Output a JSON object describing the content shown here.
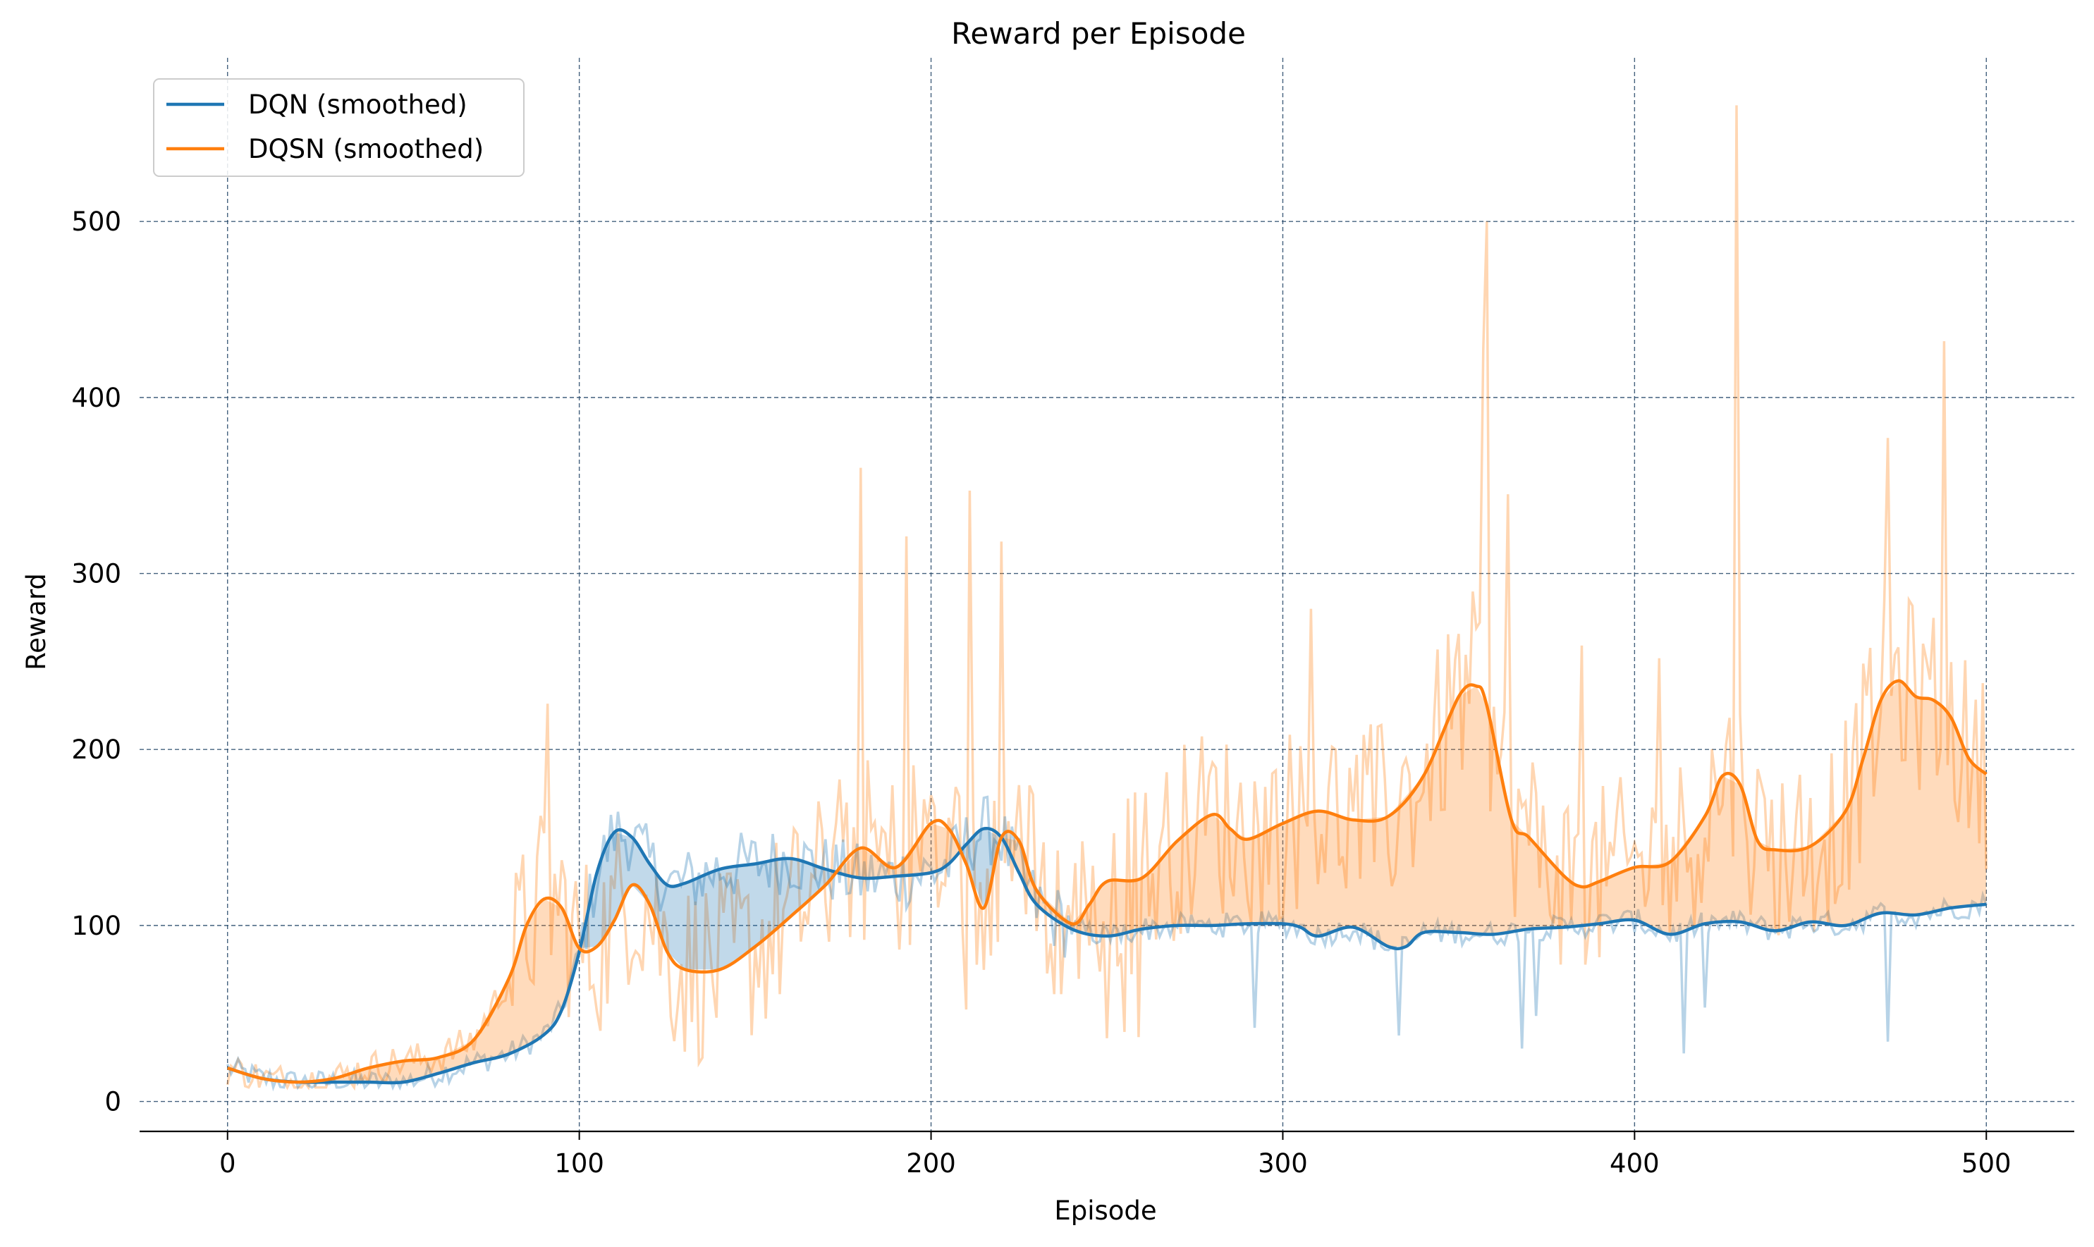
{
  "chart_data": {
    "type": "line",
    "title": "Reward per Episode",
    "xlabel": "Episode",
    "ylabel": "Reward",
    "xlim": [
      -25,
      525
    ],
    "ylim": [
      -17,
      593
    ],
    "x_ticks": [
      0,
      100,
      200,
      300,
      400,
      500
    ],
    "y_ticks": [
      0,
      100,
      200,
      300,
      400,
      500
    ],
    "grid": true,
    "legend_position": "top-left",
    "colors": {
      "dqn": "#1f77b4",
      "dqsn": "#ff7f0e"
    },
    "series": [
      {
        "name": "DQN (smoothed)",
        "x": [
          0,
          10,
          20,
          30,
          40,
          50,
          60,
          70,
          80,
          90,
          95,
          100,
          105,
          110,
          115,
          120,
          125,
          130,
          140,
          150,
          160,
          170,
          180,
          190,
          200,
          205,
          210,
          215,
          220,
          225,
          230,
          240,
          250,
          260,
          270,
          280,
          290,
          300,
          305,
          310,
          320,
          330,
          335,
          340,
          350,
          360,
          370,
          380,
          390,
          400,
          410,
          420,
          430,
          440,
          450,
          460,
          470,
          480,
          490,
          500
        ],
        "values": [
          19,
          13,
          11,
          11,
          11,
          11,
          16,
          22,
          27,
          38,
          52,
          85,
          130,
          153,
          150,
          135,
          123,
          124,
          132,
          135,
          138,
          132,
          127,
          128,
          130,
          135,
          146,
          155,
          150,
          130,
          112,
          98,
          94,
          98,
          100,
          100,
          101,
          101,
          99,
          94,
          99,
          88,
          88,
          96,
          96,
          95,
          98,
          99,
          101,
          103,
          95,
          101,
          102,
          97,
          102,
          100,
          107,
          106,
          110,
          112
        ]
      },
      {
        "name": "DQSN (smoothed)",
        "x": [
          0,
          10,
          20,
          30,
          40,
          50,
          60,
          70,
          80,
          85,
          90,
          95,
          100,
          105,
          110,
          115,
          120,
          125,
          130,
          140,
          150,
          160,
          170,
          180,
          190,
          200,
          205,
          210,
          215,
          220,
          225,
          230,
          240,
          245,
          250,
          260,
          270,
          280,
          285,
          290,
          300,
          310,
          320,
          330,
          340,
          350,
          355,
          358,
          365,
          370,
          380,
          385,
          390,
          400,
          410,
          420,
          425,
          430,
          435,
          440,
          450,
          460,
          465,
          470,
          475,
          480,
          485,
          490,
          495,
          500
        ],
        "values": [
          19,
          13,
          11,
          13,
          19,
          23,
          25,
          35,
          70,
          100,
          115,
          110,
          87,
          88,
          103,
          123,
          112,
          85,
          75,
          75,
          88,
          105,
          123,
          144,
          133,
          158,
          155,
          135,
          110,
          150,
          148,
          120,
          101,
          112,
          125,
          127,
          148,
          163,
          155,
          149,
          158,
          165,
          160,
          162,
          185,
          230,
          236,
          225,
          160,
          150,
          128,
          122,
          125,
          133,
          136,
          162,
          185,
          180,
          148,
          143,
          145,
          165,
          195,
          228,
          239,
          230,
          228,
          218,
          195,
          186
        ]
      }
    ]
  }
}
